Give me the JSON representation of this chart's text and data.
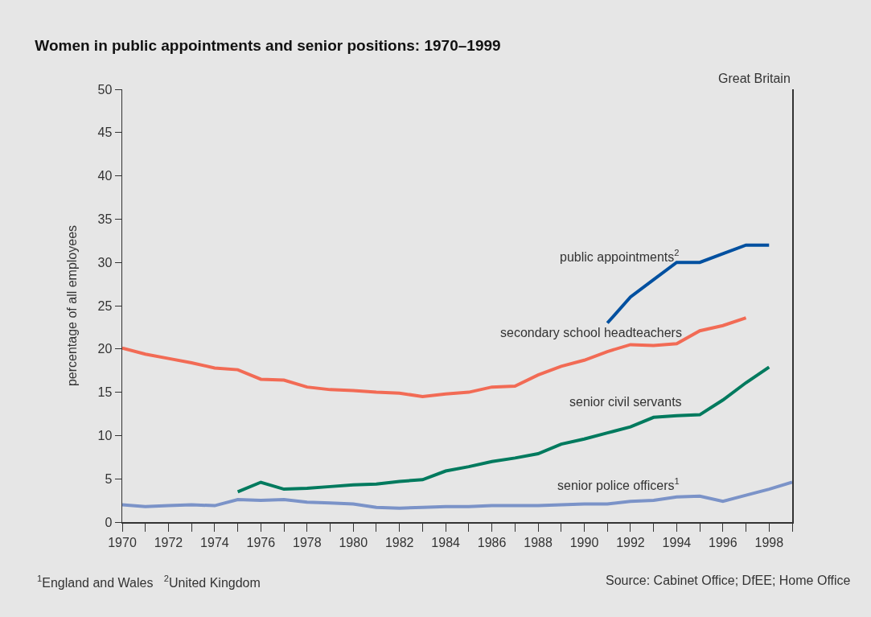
{
  "chart_data": {
    "type": "line",
    "title": "Women in public appointments and senior positions: 1970–1999",
    "ylabel": "percentage of all employees",
    "xlim": [
      1970,
      1999
    ],
    "xticks": [
      1970,
      {
        "value": 1971,
        "label": null
      },
      1972,
      {
        "value": 1973,
        "label": null
      },
      1974,
      {
        "value": 1975,
        "label": null
      },
      1976,
      {
        "value": 1977,
        "label": null
      },
      1978,
      {
        "value": 1979,
        "label": null
      },
      1980,
      {
        "value": 1981,
        "label": null
      },
      1982,
      {
        "value": 1983,
        "label": null
      },
      1984,
      {
        "value": 1985,
        "label": null
      },
      1986,
      {
        "value": 1987,
        "label": null
      },
      1988,
      {
        "value": 1989,
        "label": null
      },
      1990,
      {
        "value": 1991,
        "label": null
      },
      1992,
      {
        "value": 1993,
        "label": null
      },
      1994,
      {
        "value": 1995,
        "label": null
      },
      1996,
      {
        "value": 1997,
        "label": null
      },
      1998,
      {
        "value": 1999,
        "label": null
      }
    ],
    "ylim": [
      0,
      50
    ],
    "yticks": [
      0,
      5,
      10,
      15,
      20,
      25,
      30,
      35,
      40,
      45,
      50
    ],
    "grid": false,
    "legend": false,
    "marker": "none",
    "line_style": "solid",
    "series": [
      {
        "name": "public appointments$^{2}$",
        "color": "#0050a0",
        "x": [
          1991,
          1992,
          1993,
          1994,
          1995,
          1996,
          1997,
          1998
        ],
        "values": [
          23,
          26,
          28,
          30,
          30,
          31,
          32,
          32
        ]
      },
      {
        "name": "secondary school headteachers",
        "color": "#f26b55",
        "x": [
          1970,
          1971,
          1972,
          1973,
          1974,
          1975,
          1976,
          1977,
          1978,
          1979,
          1980,
          1981,
          1982,
          1983,
          1984,
          1985,
          1986,
          1987,
          1988,
          1989,
          1990,
          1991,
          1992,
          1993,
          1994,
          1995,
          1996,
          1997
        ],
        "values": [
          20.1,
          19.4,
          18.9,
          18.4,
          17.8,
          17.6,
          16.5,
          16.4,
          15.6,
          15.3,
          15.2,
          15.0,
          14.9,
          14.5,
          14.8,
          15.0,
          15.6,
          15.7,
          17.0,
          18.0,
          18.7,
          19.7,
          20.5,
          20.4,
          20.6,
          22.1,
          22.7,
          23.6
        ]
      },
      {
        "name": "senior civil servants",
        "color": "#007a5e",
        "x": [
          1975,
          1976,
          1977,
          1978,
          1979,
          1980,
          1981,
          1982,
          1983,
          1984,
          1985,
          1986,
          1987,
          1988,
          1989,
          1990,
          1991,
          1992,
          1993,
          1994,
          1995,
          1996,
          1997,
          1998
        ],
        "values": [
          3.5,
          4.6,
          3.8,
          3.9,
          4.1,
          4.3,
          4.4,
          4.7,
          4.9,
          5.9,
          6.4,
          7.0,
          7.4,
          7.9,
          9.0,
          9.6,
          10.3,
          11.0,
          12.1,
          12.3,
          12.4,
          14.1,
          16.1,
          17.9
        ]
      },
      {
        "name": "senior police officers$^{1}$",
        "color": "#7b93c8",
        "x": [
          1970,
          1971,
          1972,
          1973,
          1974,
          1975,
          1976,
          1977,
          1978,
          1979,
          1980,
          1981,
          1982,
          1983,
          1984,
          1985,
          1986,
          1987,
          1988,
          1989,
          1990,
          1991,
          1992,
          1993,
          1994,
          1995,
          1996,
          1997,
          1998,
          1999
        ],
        "values": [
          2.0,
          1.8,
          1.9,
          2.0,
          1.9,
          2.6,
          2.5,
          2.6,
          2.3,
          2.2,
          2.1,
          1.7,
          1.6,
          1.7,
          1.8,
          1.8,
          1.9,
          1.9,
          1.9,
          2.0,
          2.1,
          2.1,
          2.4,
          2.5,
          2.9,
          3.0,
          2.4,
          3.1,
          3.8,
          4.6
        ]
      }
    ],
    "annotations": [
      "Great Britain",
      "$^{1}$England and Wales   $^{2}$United Kingdom",
      "Source: Cabinet Office; DfEE; Home Office"
    ]
  }
}
